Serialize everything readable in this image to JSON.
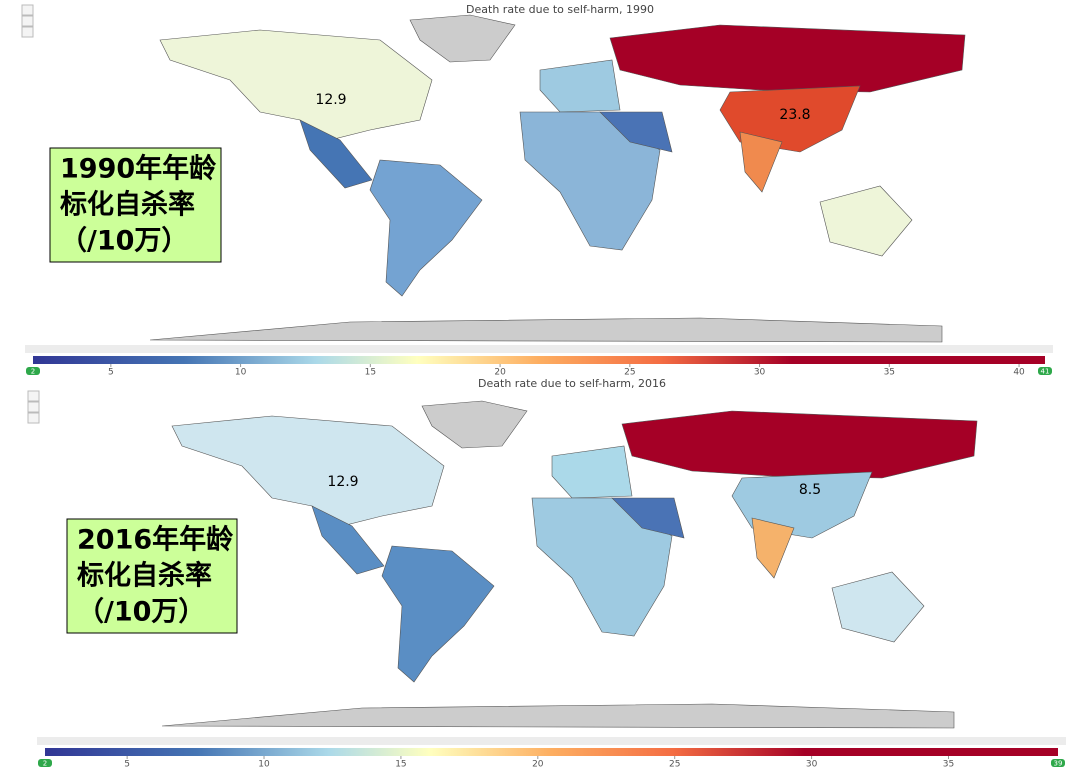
{
  "panels": [
    {
      "title": "Death rate due to self-harm, 1990",
      "label_lines": [
        "1990年年龄",
        "标化自杀率",
        "（/10万）"
      ],
      "annotations": [
        "12.9",
        "23.8"
      ],
      "scale": {
        "min": 2,
        "max": 41,
        "ticks": [
          5,
          10,
          15,
          20,
          25,
          30,
          35,
          40
        ]
      }
    },
    {
      "title": "Death rate due to self-harm, 2016",
      "label_lines": [
        "2016年年龄",
        "标化自杀率",
        "（/10万）"
      ],
      "annotations": [
        "12.9",
        "8.5"
      ],
      "scale": {
        "min": 2,
        "max": 39,
        "ticks": [
          5,
          10,
          15,
          20,
          25,
          30,
          35
        ]
      }
    }
  ]
}
